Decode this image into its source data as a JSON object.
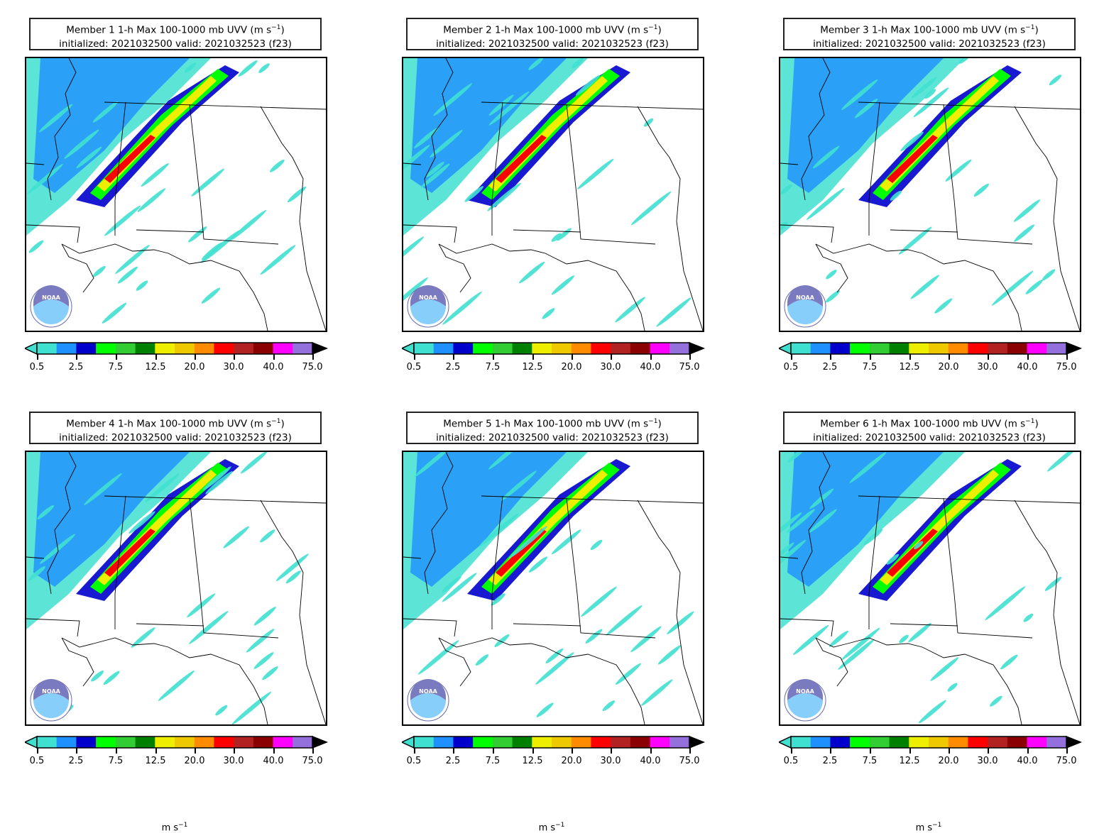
{
  "panels": [
    {
      "member_label": "Member 1 1-h Max 100-1000 mb UVV",
      "init_line": "initialized: 2021032500 valid: 2021032523 (f23)"
    },
    {
      "member_label": "Member 2 1-h Max 100-1000 mb UVV",
      "init_line": "initialized: 2021032500 valid: 2021032523 (f23)"
    },
    {
      "member_label": "Member 3 1-h Max 100-1000 mb UVV",
      "init_line": "initialized: 2021032500 valid: 2021032523 (f23)"
    },
    {
      "member_label": "Member 4 1-h Max 100-1000 mb UVV",
      "init_line": "initialized: 2021032500 valid: 2021032523 (f23)"
    },
    {
      "member_label": "Member 5 1-h Max 100-1000 mb UVV",
      "init_line": "initialized: 2021032500 valid: 2021032523 (f23)"
    },
    {
      "member_label": "Member 6 1-h Max 100-1000 mb UVV",
      "init_line": "initialized: 2021032500 valid: 2021032523 (f23)"
    }
  ],
  "units_open": "(m s",
  "units_exp": "−1",
  "units_close": ")",
  "units_label": "m s",
  "colorbar": {
    "tick_labels": [
      "0.5",
      "2.5",
      "7.5",
      "12.5",
      "20.0",
      "30.0",
      "40.0",
      "75.0"
    ],
    "colors": [
      "#40e0d0",
      "#1e90ff",
      "#0000cd",
      "#00ff00",
      "#32cd32",
      "#008000",
      "#eeee00",
      "#eec900",
      "#ff8c00",
      "#ff0000",
      "#b22222",
      "#8b0000",
      "#ff00ff",
      "#9370db"
    ]
  },
  "logo_text": "NOAA"
}
